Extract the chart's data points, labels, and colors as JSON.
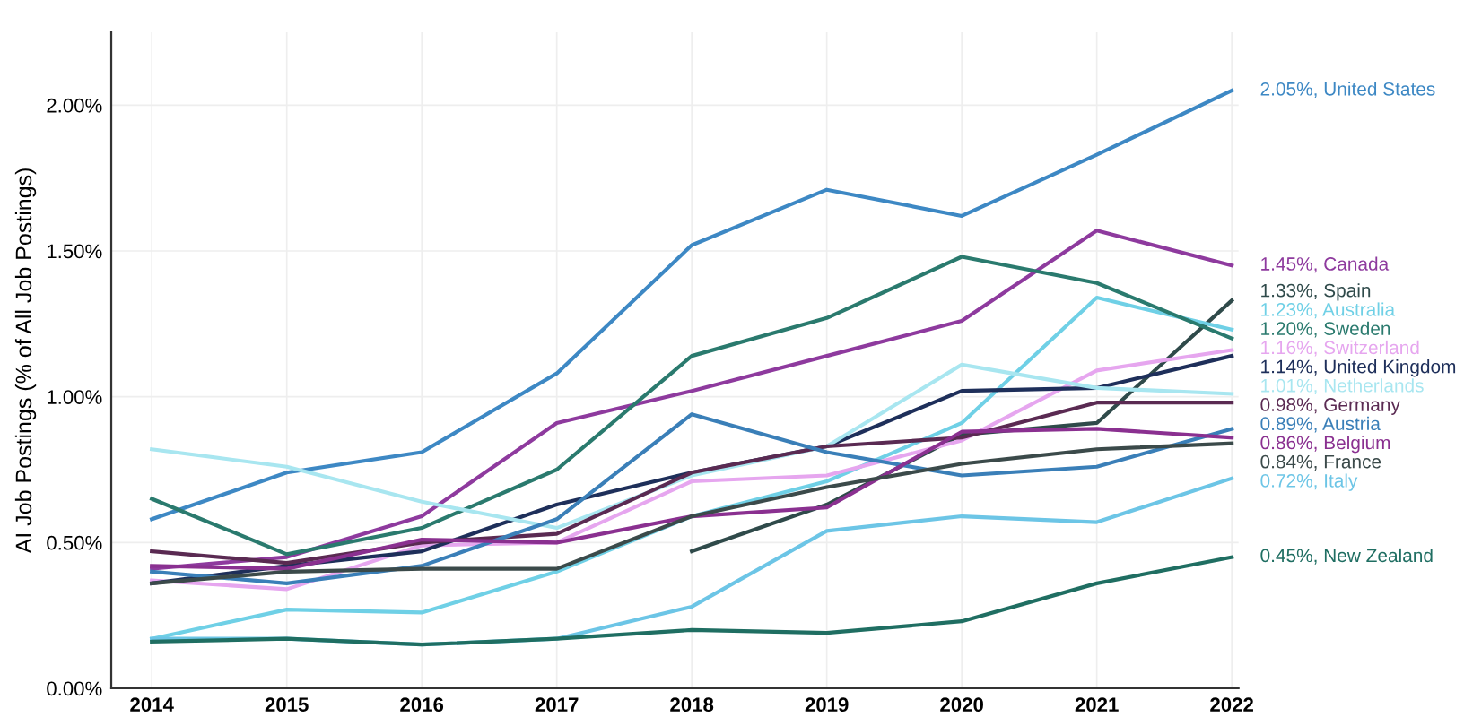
{
  "chart_data": {
    "type": "line",
    "ylabel": "AI Job Postings (% of All Job Postings)",
    "x": [
      2014,
      2015,
      2016,
      2017,
      2018,
      2019,
      2020,
      2021,
      2022
    ],
    "xlim": [
      2013.7,
      2022.05
    ],
    "xticks": [
      2014,
      2015,
      2016,
      2017,
      2018,
      2019,
      2020,
      2021,
      2022
    ],
    "ylim": [
      0,
      2.25
    ],
    "yticks": [
      {
        "value": 0,
        "label": "0.00%"
      },
      {
        "value": 0.5,
        "label": "0.50%"
      },
      {
        "value": 1.0,
        "label": "1.00%"
      },
      {
        "value": 1.5,
        "label": "1.50%"
      },
      {
        "value": 2.0,
        "label": "2.00%"
      }
    ],
    "grid": true,
    "legend": false,
    "marker": "none",
    "line_style": "solid",
    "series": [
      {
        "color": "#3d88c4",
        "values": [
          0.58,
          0.74,
          0.81,
          1.08,
          1.52,
          1.71,
          1.62,
          1.83,
          2.05
        ],
        "value_labels": [
          null,
          null,
          null,
          null,
          null,
          null,
          null,
          null,
          "2.05%, United States"
        ]
      },
      {
        "color": "#8e3a9e",
        "values": [
          0.41,
          0.45,
          0.59,
          0.91,
          1.02,
          1.14,
          1.26,
          1.57,
          1.45
        ],
        "value_labels": [
          null,
          null,
          null,
          null,
          null,
          null,
          null,
          null,
          "1.45%, Canada"
        ]
      },
      {
        "color": "#2f4a4a",
        "values": [
          null,
          null,
          null,
          null,
          0.47,
          0.63,
          0.87,
          0.91,
          1.33
        ],
        "value_labels": [
          null,
          null,
          null,
          null,
          null,
          null,
          null,
          null,
          "1.33%, Spain"
        ]
      },
      {
        "color": "#6fd0e6",
        "values": [
          0.17,
          0.27,
          0.26,
          0.4,
          0.59,
          0.71,
          0.91,
          1.34,
          1.23
        ],
        "value_labels": [
          null,
          null,
          null,
          null,
          null,
          null,
          null,
          null,
          "1.23%, Australia"
        ]
      },
      {
        "color": "#2a7a6e",
        "values": [
          0.65,
          0.46,
          0.55,
          0.75,
          1.14,
          1.27,
          1.48,
          1.39,
          1.2
        ],
        "value_labels": [
          null,
          null,
          null,
          null,
          null,
          null,
          null,
          null,
          "1.20%, Sweden"
        ]
      },
      {
        "color": "#e6a6ef",
        "values": [
          0.37,
          0.34,
          0.49,
          0.5,
          0.71,
          0.73,
          0.85,
          1.09,
          1.16
        ],
        "value_labels": [
          null,
          null,
          null,
          null,
          null,
          null,
          null,
          null,
          "1.16%, Switzerland"
        ]
      },
      {
        "color": "#1e2f5a",
        "values": [
          0.36,
          0.42,
          0.47,
          0.63,
          0.74,
          0.83,
          1.02,
          1.03,
          1.14
        ],
        "value_labels": [
          null,
          null,
          null,
          null,
          null,
          null,
          null,
          null,
          "1.14%, United Kingdom"
        ]
      },
      {
        "color": "#a8e6f0",
        "values": [
          0.82,
          0.76,
          0.64,
          0.55,
          0.73,
          0.83,
          1.11,
          1.03,
          1.01
        ],
        "value_labels": [
          null,
          null,
          null,
          null,
          null,
          null,
          null,
          null,
          "1.01%, Netherlands"
        ]
      },
      {
        "color": "#5a2a52",
        "values": [
          0.47,
          0.43,
          0.5,
          0.53,
          0.74,
          0.83,
          0.86,
          0.98,
          0.98
        ],
        "value_labels": [
          null,
          null,
          null,
          null,
          null,
          null,
          null,
          null,
          "0.98%, Germany"
        ]
      },
      {
        "color": "#3a7fb8",
        "values": [
          0.4,
          0.36,
          0.42,
          0.58,
          0.94,
          0.81,
          0.73,
          0.76,
          0.89
        ],
        "value_labels": [
          null,
          null,
          null,
          null,
          null,
          null,
          null,
          null,
          "0.89%, Austria"
        ]
      },
      {
        "color": "#8a3090",
        "values": [
          0.42,
          0.41,
          0.51,
          0.5,
          0.59,
          0.62,
          0.88,
          0.89,
          0.86
        ],
        "value_labels": [
          null,
          null,
          null,
          null,
          null,
          null,
          null,
          null,
          "0.86%, Belgium"
        ]
      },
      {
        "color": "#3b4a4a",
        "values": [
          0.36,
          0.4,
          0.41,
          0.41,
          0.59,
          0.69,
          0.77,
          0.82,
          0.84
        ],
        "value_labels": [
          null,
          null,
          null,
          null,
          null,
          null,
          null,
          null,
          "0.84%, France"
        ]
      },
      {
        "color": "#6cc5e6",
        "values": [
          0.17,
          0.17,
          0.15,
          0.17,
          0.28,
          0.54,
          0.59,
          0.57,
          0.72
        ],
        "value_labels": [
          null,
          null,
          null,
          null,
          null,
          null,
          null,
          null,
          "0.72%, Italy"
        ]
      },
      {
        "color": "#1f6e62",
        "values": [
          0.16,
          0.17,
          0.15,
          0.17,
          0.2,
          0.19,
          0.23,
          0.36,
          0.45
        ],
        "value_labels": [
          null,
          null,
          null,
          null,
          null,
          null,
          null,
          null,
          "0.45%, New Zealand"
        ]
      }
    ]
  }
}
